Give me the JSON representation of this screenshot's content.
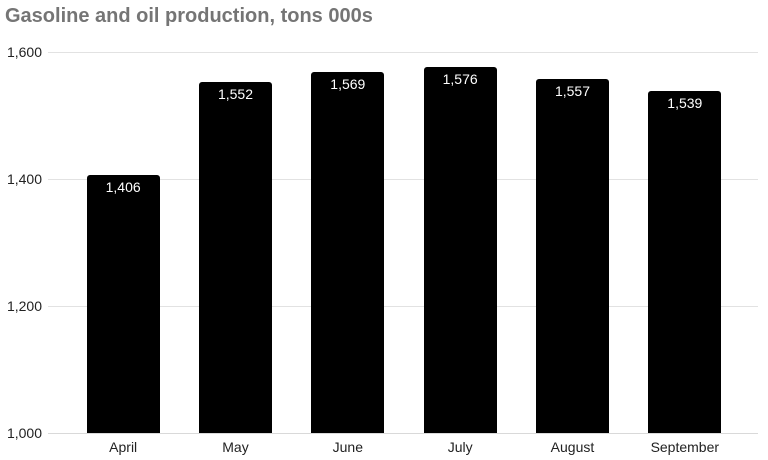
{
  "chart_data": {
    "type": "bar",
    "title": "Gasoline and oil production, tons 000s",
    "xlabel": "",
    "ylabel": "",
    "categories": [
      "April",
      "May",
      "June",
      "July",
      "August",
      "September"
    ],
    "values": [
      1406,
      1552,
      1569,
      1576,
      1557,
      1539
    ],
    "value_labels": [
      "1,406",
      "1,552",
      "1,569",
      "1,576",
      "1,557",
      "1,539"
    ],
    "ylim": [
      1000,
      1600
    ],
    "yticks": [
      {
        "value": 1000,
        "label": "1,000"
      },
      {
        "value": 1200,
        "label": "1,200"
      },
      {
        "value": 1400,
        "label": "1,400"
      },
      {
        "value": 1600,
        "label": "1,600"
      }
    ],
    "grid": true,
    "legend": "none",
    "colors": {
      "bar": "#000000",
      "bar_value_label": "#ffffff",
      "title": "#757575",
      "axis_label": "#222222",
      "gridline": "#e2e2e2",
      "baseline": "#d9d9d9",
      "background": "#ffffff"
    }
  }
}
